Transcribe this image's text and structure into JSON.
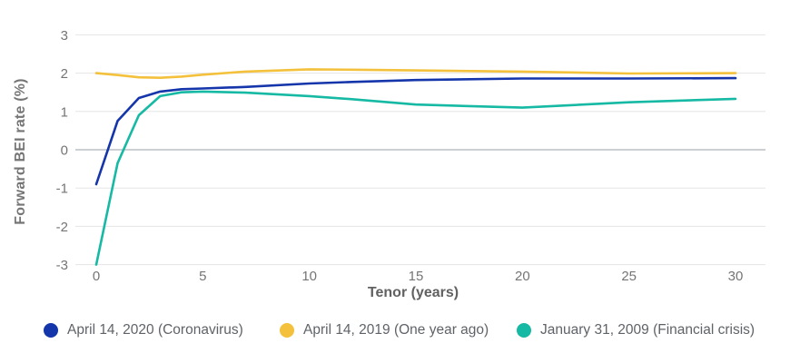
{
  "chart_data": {
    "type": "line",
    "title": "",
    "xlabel": "Tenor (years)",
    "ylabel": "Forward BEI rate (%)",
    "x": [
      0,
      1,
      2,
      3,
      4,
      5,
      7,
      10,
      12,
      15,
      20,
      25,
      30
    ],
    "x_ticks": [
      0,
      5,
      10,
      15,
      20,
      25,
      30
    ],
    "y_ticks": [
      3,
      2,
      1,
      0,
      -1,
      -2,
      -3
    ],
    "xlim": [
      0,
      30
    ],
    "ylim": [
      -3,
      3
    ],
    "grid": "horizontal",
    "legend_position": "bottom",
    "series": [
      {
        "name": "April 14, 2020 (Coronavirus)",
        "color": "#1535ab",
        "values": [
          -0.9,
          0.75,
          1.35,
          1.52,
          1.58,
          1.6,
          1.64,
          1.73,
          1.77,
          1.82,
          1.86,
          1.86,
          1.87
        ]
      },
      {
        "name": "April 14, 2019 (One year ago)",
        "color": "#f3c13c",
        "values": [
          2.0,
          1.95,
          1.89,
          1.88,
          1.91,
          1.96,
          2.04,
          2.1,
          2.09,
          2.07,
          2.04,
          1.99,
          2.0
        ]
      },
      {
        "name": "January 31, 2009 (Financial crisis)",
        "color": "#16b9a3",
        "values": [
          -3.0,
          -0.35,
          0.9,
          1.4,
          1.5,
          1.52,
          1.49,
          1.4,
          1.32,
          1.18,
          1.1,
          1.24,
          1.33
        ]
      }
    ],
    "style": {
      "grid_color": "#e5e5e5",
      "zero_line_color": "#9aa0a6",
      "tick_label_color": "#757575",
      "axis_title_color": "#616161",
      "legend_text_color": "#5f6368",
      "background": "#ffffff"
    }
  }
}
